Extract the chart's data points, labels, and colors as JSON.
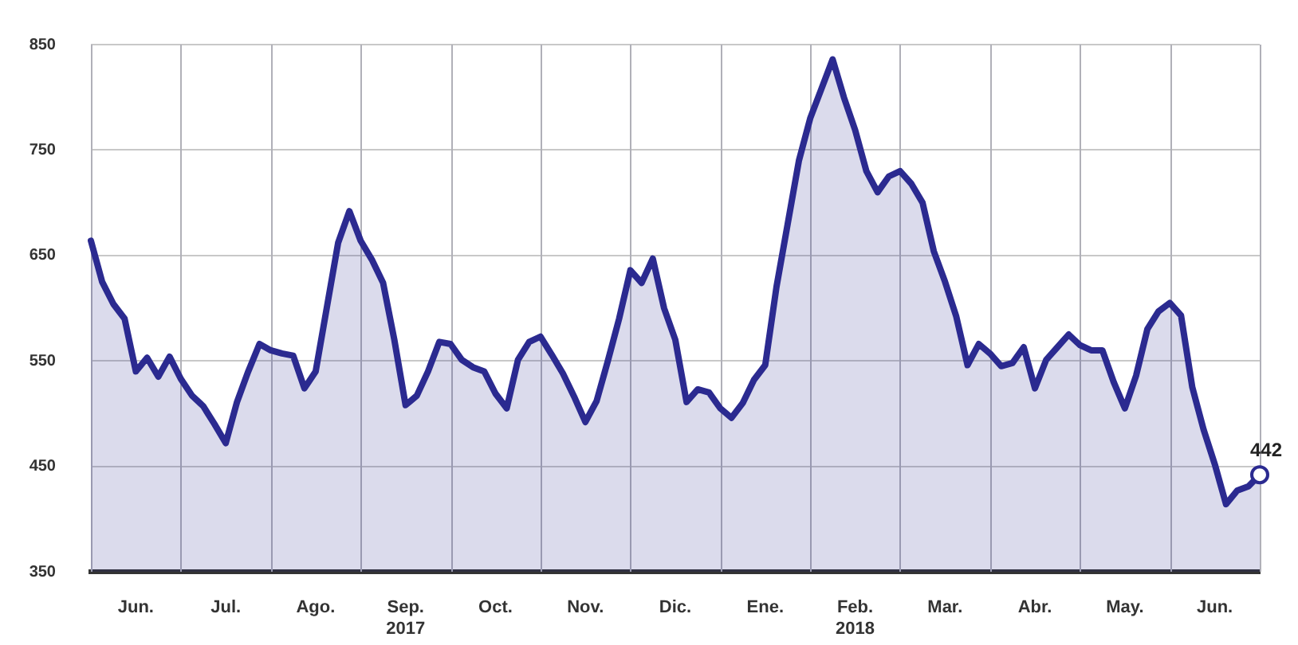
{
  "chart_data": {
    "type": "area",
    "categories": [
      null,
      null,
      null,
      null,
      "Jun.",
      null,
      null,
      null,
      null,
      null,
      null,
      null,
      "Jul.",
      null,
      null,
      null,
      null,
      null,
      null,
      null,
      "Ago.",
      null,
      null,
      null,
      null,
      null,
      null,
      null,
      "Sep.\n2017",
      null,
      null,
      null,
      null,
      null,
      null,
      null,
      "Oct.",
      null,
      null,
      null,
      null,
      null,
      null,
      null,
      "Nov.",
      null,
      null,
      null,
      null,
      null,
      null,
      null,
      "Dic.",
      null,
      null,
      null,
      null,
      null,
      null,
      null,
      "Ene.",
      null,
      null,
      null,
      null,
      null,
      null,
      null,
      "Feb.\n2018",
      null,
      null,
      null,
      null,
      null,
      null,
      null,
      "Mar.",
      null,
      null,
      null,
      null,
      null,
      null,
      null,
      "Abr.",
      null,
      null,
      null,
      null,
      null,
      null,
      null,
      "May.",
      null,
      null,
      null,
      null,
      null,
      null,
      null,
      "Jun.",
      null,
      null,
      null,
      null
    ],
    "series": [
      {
        "color": "#2b2a90",
        "values": [
          664,
          625,
          604,
          590,
          540,
          553,
          535,
          554,
          533,
          517,
          507,
          490,
          472,
          511,
          540,
          566,
          560,
          557,
          555,
          524,
          540,
          601,
          662,
          692,
          664,
          646,
          624,
          570,
          508,
          517,
          540,
          568,
          566,
          551,
          544,
          540,
          519,
          505,
          551,
          568,
          573,
          556,
          538,
          516,
          492,
          512,
          550,
          590,
          636,
          624,
          647,
          600,
          570,
          511,
          523,
          520,
          505,
          496,
          510,
          532,
          546,
          620,
          680,
          740,
          780,
          808,
          836,
          800,
          769,
          730,
          710,
          725,
          730,
          718,
          700,
          654,
          625,
          592,
          546,
          566,
          557,
          545,
          548,
          563,
          524,
          551,
          563,
          575,
          565,
          560,
          560,
          530,
          505,
          536,
          580,
          597,
          605,
          593,
          525,
          485,
          452,
          414,
          427,
          431,
          442
        ],
        "value_labels": [
          null,
          null,
          null,
          null,
          null,
          null,
          null,
          null,
          null,
          null,
          null,
          null,
          null,
          null,
          null,
          null,
          null,
          null,
          null,
          null,
          null,
          null,
          null,
          null,
          null,
          null,
          null,
          null,
          null,
          null,
          null,
          null,
          null,
          null,
          null,
          null,
          null,
          null,
          null,
          null,
          null,
          null,
          null,
          null,
          null,
          null,
          null,
          null,
          null,
          null,
          null,
          null,
          null,
          null,
          null,
          null,
          null,
          null,
          null,
          null,
          null,
          null,
          null,
          null,
          null,
          null,
          null,
          null,
          null,
          null,
          null,
          null,
          null,
          null,
          null,
          null,
          null,
          null,
          null,
          null,
          null,
          null,
          null,
          null,
          null,
          null,
          null,
          null,
          null,
          null,
          null,
          null,
          null,
          null,
          null,
          null,
          null,
          null,
          null,
          null,
          null,
          null,
          null,
          null,
          "442"
        ]
      }
    ],
    "ylim": [
      350,
      850
    ],
    "yticks": [
      350,
      450,
      550,
      650,
      750,
      850
    ],
    "grid": true,
    "legend": false,
    "line_style": "solid"
  }
}
